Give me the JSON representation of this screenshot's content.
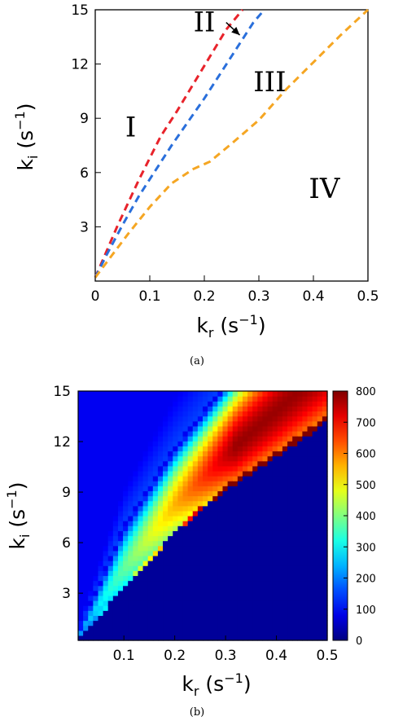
{
  "chart_data": [
    {
      "type": "line",
      "panel": "(a)",
      "xlabel": {
        "base": "k",
        "sub": "r",
        "unit": " (s",
        "sup": "−1",
        "close": ")"
      },
      "ylabel": {
        "base": "k",
        "sub": "i",
        "unit": " (s",
        "sup": "−1",
        "close": ")"
      },
      "xlim": [
        0,
        0.5
      ],
      "ylim": [
        0,
        15
      ],
      "xticks": [
        "0",
        "0.1",
        "0.2",
        "0.3",
        "0.4",
        "0.5"
      ],
      "yticks": [
        "3",
        "6",
        "9",
        "12",
        "15"
      ],
      "grid": false,
      "series": [
        {
          "color": "#e8232b",
          "x": [
            0.0,
            0.02,
            0.04,
            0.06,
            0.08,
            0.1,
            0.12,
            0.15,
            0.18,
            0.21,
            0.24,
            0.27
          ],
          "y": [
            0.2,
            1.6,
            3.0,
            4.3,
            5.6,
            6.8,
            8.0,
            9.4,
            10.9,
            12.4,
            13.9,
            15.3
          ]
        },
        {
          "color": "#2a6fdb",
          "x": [
            0.0,
            0.02,
            0.05,
            0.08,
            0.11,
            0.14,
            0.17,
            0.2,
            0.23,
            0.26,
            0.29,
            0.31
          ],
          "y": [
            0.2,
            1.4,
            3.1,
            4.7,
            6.1,
            7.5,
            8.8,
            10.1,
            11.5,
            12.9,
            14.3,
            15.2
          ]
        },
        {
          "color": "#f5a623",
          "x": [
            0.0,
            0.03,
            0.06,
            0.1,
            0.14,
            0.18,
            0.21,
            0.25,
            0.3,
            0.35,
            0.4,
            0.45,
            0.5
          ],
          "y": [
            0.2,
            1.4,
            2.6,
            4.1,
            5.4,
            6.2,
            6.6,
            7.6,
            8.9,
            10.6,
            12.1,
            13.6,
            15.0
          ]
        }
      ],
      "annotations": [
        {
          "text": "I",
          "x": 0.065,
          "y": 8.0
        },
        {
          "text": "II",
          "x": 0.2,
          "y": 13.8
        },
        {
          "text": "III",
          "x": 0.32,
          "y": 10.5
        },
        {
          "text": "IV",
          "x": 0.42,
          "y": 4.6
        }
      ],
      "arrow": {
        "from": [
          0.24,
          14.3
        ],
        "to": [
          0.265,
          13.6
        ]
      }
    },
    {
      "type": "heatmap",
      "panel": "(b)",
      "xlabel": {
        "base": "k",
        "sub": "r",
        "unit": " (s",
        "sup": "−1",
        "close": ")"
      },
      "ylabel": {
        "base": "k",
        "sub": "i",
        "unit": " (s",
        "sup": "−1",
        "close": ")"
      },
      "xlim": [
        0.01,
        0.5
      ],
      "ylim": [
        0.2,
        15
      ],
      "xticks": [
        "0.1",
        "0.2",
        "0.3",
        "0.4",
        "0.5"
      ],
      "yticks": [
        "3",
        "6",
        "9",
        "12",
        "15"
      ],
      "colorbar": {
        "min": 0,
        "max": 800,
        "ticks": [
          "0",
          "100",
          "200",
          "300",
          "400",
          "500",
          "600",
          "700",
          "800"
        ]
      },
      "grid_size": [
        50,
        50
      ],
      "lower_boundary": {
        "x": [
          0.0,
          0.1,
          0.2,
          0.3,
          0.4,
          0.5
        ],
        "y": [
          0.0,
          3.3,
          6.6,
          9.1,
          11.1,
          13.2
        ]
      },
      "upper_boundary": {
        "x": [
          0.0,
          0.1,
          0.2,
          0.3
        ],
        "y": [
          0.0,
          6.9,
          11.5,
          15.2
        ]
      },
      "peak_value": 780
    }
  ],
  "captions": {
    "a": "(a)",
    "b": "(b)"
  }
}
